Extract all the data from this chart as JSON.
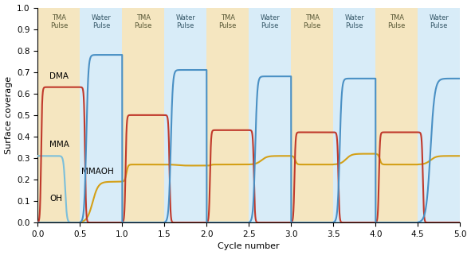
{
  "xlabel": "Cycle number",
  "ylabel": "Surface coverage",
  "xlim": [
    0.0,
    5.0
  ],
  "ylim": [
    0.0,
    1.0
  ],
  "yticks": [
    0.0,
    0.1,
    0.2,
    0.3,
    0.4,
    0.5,
    0.6,
    0.7,
    0.8,
    0.9,
    1.0
  ],
  "xticks": [
    0.0,
    0.5,
    1.0,
    1.5,
    2.0,
    2.5,
    3.0,
    3.5,
    4.0,
    4.5,
    5.0
  ],
  "tma_color": "#F5E6C0",
  "water_color": "#D8ECF8",
  "colors": {
    "DMA": "#4A90C4",
    "MMA": "#C0392B",
    "MMAOH": "#D4A017",
    "OH": "#7BBFDB"
  },
  "lw": 1.5,
  "n_cycles": 5,
  "tma_dur": 0.5,
  "water_dur": 0.5,
  "figsize": [
    5.91,
    3.21
  ],
  "dpi": 100,
  "dma_water_peaks": [
    0.78,
    0.71,
    0.68,
    0.67,
    0.67
  ],
  "mma_tma_plateaus": [
    0.63,
    0.5,
    0.43,
    0.42,
    0.42
  ],
  "oh_tma1_level": 0.31,
  "mmaoh_water_levels": [
    0.19,
    0.265,
    0.31,
    0.32,
    0.31
  ],
  "mmaoh_tma_levels": [
    0.0,
    0.27,
    0.27,
    0.27,
    0.27
  ],
  "label_DMA": [
    0.14,
    0.67
  ],
  "label_MMA": [
    0.14,
    0.35
  ],
  "label_MMAOH": [
    0.52,
    0.225
  ],
  "label_OH": [
    0.14,
    0.1
  ],
  "fontsize_label": 7.5,
  "fontsize_axis": 8,
  "fontsize_tick": 7.5,
  "fontsize_header": 6.0
}
